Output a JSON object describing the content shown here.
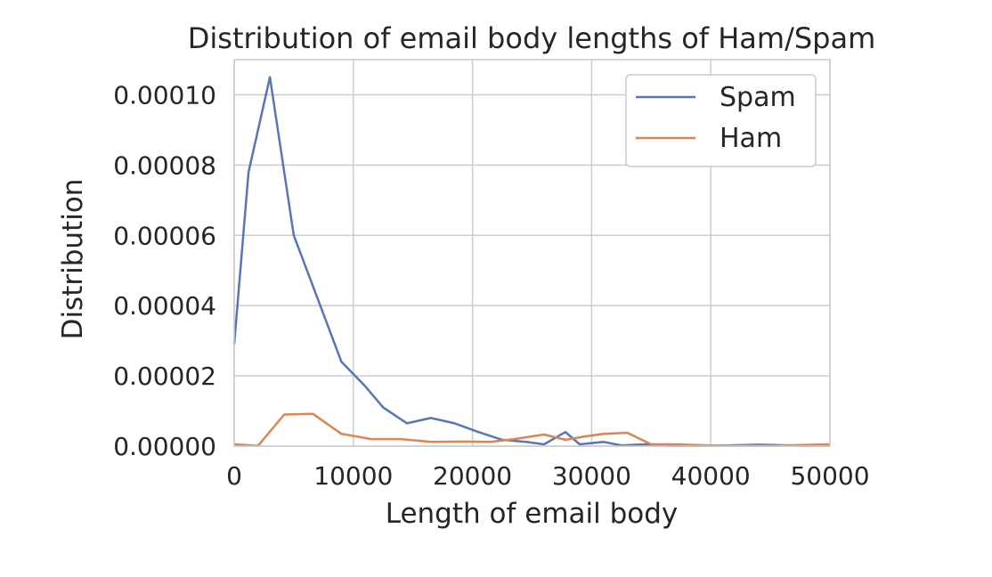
{
  "chart_data": {
    "type": "line",
    "title": "Distribution of email body lengths of Ham/Spam",
    "xlabel": "Length of email body",
    "ylabel": "Distribution",
    "xlim": [
      0,
      50000
    ],
    "ylim": [
      0,
      0.00011
    ],
    "xticks": [
      {
        "value": 0,
        "label": "0"
      },
      {
        "value": 10000,
        "label": "10000"
      },
      {
        "value": 20000,
        "label": "20000"
      },
      {
        "value": 30000,
        "label": "30000"
      },
      {
        "value": 40000,
        "label": "40000"
      },
      {
        "value": 50000,
        "label": "50000"
      }
    ],
    "yticks": [
      {
        "value": 0,
        "label": "0.00000"
      },
      {
        "value": 2e-05,
        "label": "0.00002"
      },
      {
        "value": 4e-05,
        "label": "0.00004"
      },
      {
        "value": 6e-05,
        "label": "0.00006"
      },
      {
        "value": 8e-05,
        "label": "0.00008"
      },
      {
        "value": 0.0001,
        "label": "0.00010"
      }
    ],
    "grid": true,
    "legend_position": "top-right",
    "series": [
      {
        "name": "Spam",
        "color": "#5875b8",
        "x": [
          0,
          1200,
          3000,
          5000,
          7000,
          9000,
          11000,
          12500,
          14500,
          16500,
          18500,
          20500,
          22500,
          24500,
          26000,
          27800,
          29000,
          31000,
          32500,
          34500,
          36500,
          40000,
          44000,
          48000,
          50000
        ],
        "y": [
          2.9e-05,
          7.8e-05,
          0.000105,
          6e-05,
          4.2e-05,
          2.4e-05,
          1.7e-05,
          1.1e-05,
          6.5e-06,
          8e-06,
          6.5e-06,
          4e-06,
          1.8e-06,
          1.2e-06,
          5e-07,
          4e-06,
          5e-07,
          1.2e-06,
          2e-07,
          5e-07,
          1e-07,
          1e-07,
          4e-07,
          1e-07,
          2e-07
        ]
      },
      {
        "name": "Ham",
        "color": "#dd8453",
        "x": [
          0,
          2000,
          4200,
          6600,
          9000,
          11500,
          14000,
          16500,
          19000,
          21500,
          23500,
          26000,
          27800,
          29500,
          31000,
          33000,
          35000,
          37000,
          40000,
          45000,
          50000
        ],
        "y": [
          5e-07,
          1e-07,
          9e-06,
          9.2e-06,
          3.5e-06,
          2e-06,
          2e-06,
          1.2e-06,
          1.3e-06,
          1.2e-06,
          2e-06,
          3.3e-06,
          1.8e-06,
          2.8e-06,
          3.5e-06,
          3.8e-06,
          5e-07,
          5e-07,
          2e-07,
          1e-07,
          5e-07
        ]
      }
    ]
  }
}
